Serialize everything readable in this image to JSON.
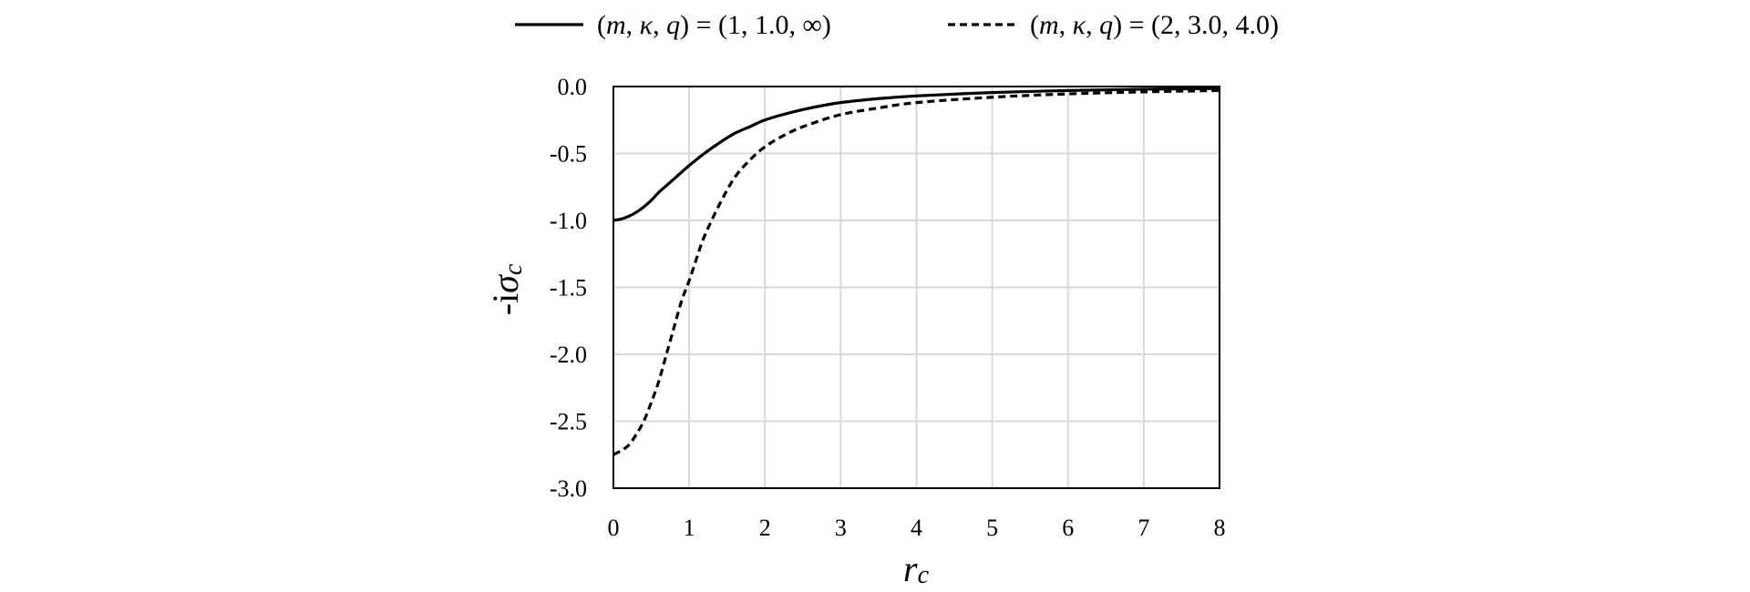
{
  "chart_data": {
    "type": "line",
    "xlabel": {
      "main": "r",
      "sub": "c"
    },
    "ylabel": {
      "prefix": "-i",
      "main": "σ",
      "sub": "c"
    },
    "xlim": [
      0,
      8
    ],
    "ylim": [
      -3.0,
      0.0
    ],
    "x_ticks": [
      "0",
      "1",
      "2",
      "3",
      "4",
      "5",
      "6",
      "7",
      "8"
    ],
    "y_ticks": [
      "0.0",
      "-0.5",
      "-1.0",
      "-1.5",
      "-2.0",
      "-2.5",
      "-3.0"
    ],
    "grid": true,
    "legend_position": "top",
    "series": [
      {
        "name": "(m, κ, q) = (1, 1.0, ∞)",
        "legend_parts": [
          {
            "t": "(",
            "i": false
          },
          {
            "t": "m",
            "i": true
          },
          {
            "t": ", ",
            "i": false
          },
          {
            "t": "κ",
            "i": true
          },
          {
            "t": ", ",
            "i": false
          },
          {
            "t": "q",
            "i": true
          },
          {
            "t": ") = (1, 1.0, ∞)",
            "i": false
          }
        ],
        "style": "solid",
        "color": "#000000",
        "x": [
          0,
          0.1,
          0.2,
          0.3,
          0.4,
          0.5,
          0.6,
          0.7,
          0.8,
          0.9,
          1.0,
          1.2,
          1.4,
          1.6,
          1.8,
          2.0,
          2.3,
          2.6,
          3.0,
          3.5,
          4.0,
          5.0,
          6.0,
          7.0,
          8.0
        ],
        "y": [
          -1.0,
          -0.99,
          -0.97,
          -0.94,
          -0.9,
          -0.85,
          -0.79,
          -0.74,
          -0.69,
          -0.64,
          -0.59,
          -0.5,
          -0.42,
          -0.35,
          -0.3,
          -0.25,
          -0.2,
          -0.16,
          -0.12,
          -0.09,
          -0.07,
          -0.045,
          -0.03,
          -0.02,
          -0.015
        ]
      },
      {
        "name": "(m, κ, q) = (2, 3.0, 4.0)",
        "legend_parts": [
          {
            "t": "(",
            "i": false
          },
          {
            "t": "m",
            "i": true
          },
          {
            "t": ", ",
            "i": false
          },
          {
            "t": "κ",
            "i": true
          },
          {
            "t": ", ",
            "i": false
          },
          {
            "t": "q",
            "i": true
          },
          {
            "t": ") = (2, 3.0, 4.0)",
            "i": false
          }
        ],
        "style": "dashed",
        "color": "#000000",
        "x": [
          0,
          0.1,
          0.2,
          0.3,
          0.4,
          0.5,
          0.6,
          0.7,
          0.8,
          0.9,
          1.0,
          1.1,
          1.2,
          1.4,
          1.6,
          1.8,
          2.0,
          2.3,
          2.6,
          3.0,
          3.5,
          4.0,
          5.0,
          6.0,
          7.0,
          8.0
        ],
        "y": [
          -2.75,
          -2.72,
          -2.68,
          -2.6,
          -2.5,
          -2.36,
          -2.2,
          -2.0,
          -1.8,
          -1.6,
          -1.45,
          -1.28,
          -1.12,
          -0.88,
          -0.68,
          -0.55,
          -0.45,
          -0.35,
          -0.28,
          -0.21,
          -0.16,
          -0.12,
          -0.08,
          -0.055,
          -0.04,
          -0.03
        ]
      }
    ]
  }
}
